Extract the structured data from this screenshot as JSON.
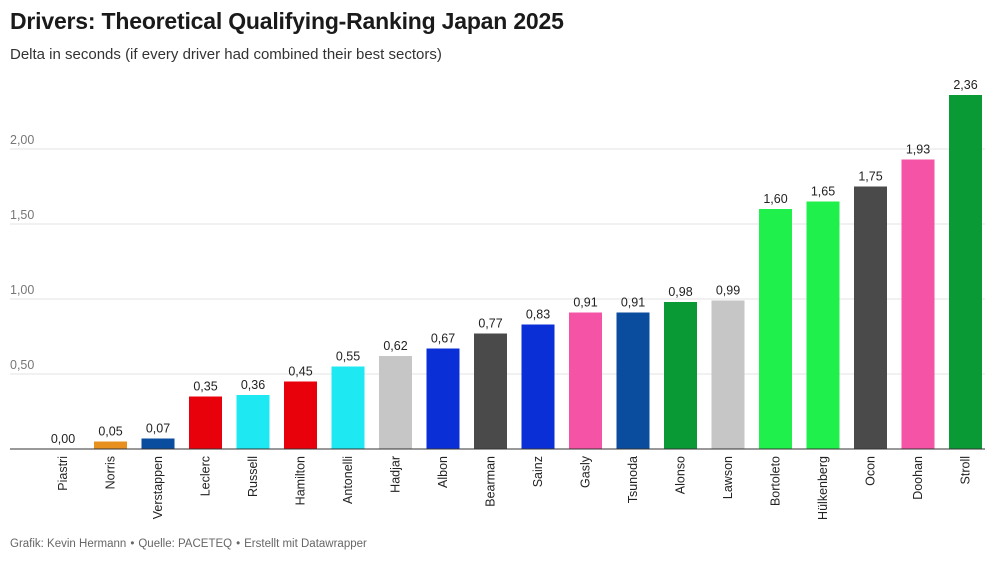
{
  "title": "Drivers: Theoretical Qualifying-Ranking Japan 2025",
  "subtitle": "Delta in seconds (if every driver had combined their best sectors)",
  "footer": {
    "grafik": "Grafik: Kevin Hermann",
    "quelle": "Quelle: PACETEQ",
    "erstellt": "Erstellt mit Datawrapper",
    "separator": "•"
  },
  "chart_data": {
    "type": "bar",
    "title": "Drivers: Theoretical Qualifying-Ranking Japan 2025",
    "subtitle": "Delta in seconds (if every driver had combined their best sectors)",
    "xlabel": "",
    "ylabel": "",
    "ylim": [
      0,
      2.4
    ],
    "yticks": [
      0.5,
      1.0,
      1.5,
      2.0
    ],
    "ytick_labels": [
      "0,50",
      "1,00",
      "1,50",
      "2,00"
    ],
    "grid": true,
    "categories": [
      "Piastri",
      "Norris",
      "Verstappen",
      "Leclerc",
      "Russell",
      "Hamilton",
      "Antonelli",
      "Hadjar",
      "Albon",
      "Bearman",
      "Sainz",
      "Gasly",
      "Tsunoda",
      "Alonso",
      "Lawson",
      "Bortoleto",
      "Hülkenberg",
      "Ocon",
      "Doohan",
      "Stroll"
    ],
    "values": [
      0.0,
      0.05,
      0.07,
      0.35,
      0.36,
      0.45,
      0.55,
      0.62,
      0.67,
      0.77,
      0.83,
      0.91,
      0.91,
      0.98,
      0.99,
      1.6,
      1.65,
      1.75,
      1.93,
      2.36
    ],
    "value_labels": [
      "0,00",
      "0,05",
      "0,07",
      "0,35",
      "0,36",
      "0,45",
      "0,55",
      "0,62",
      "0,67",
      "0,77",
      "0,83",
      "0,91",
      "0,91",
      "0,98",
      "0,99",
      "1,60",
      "1,65",
      "1,75",
      "1,93",
      "2,36"
    ],
    "colors": [
      "#f58020",
      "#e8901e",
      "#0a4d9e",
      "#e8000b",
      "#1ee8f2",
      "#e8000b",
      "#1ee8f2",
      "#c6c6c6",
      "#0a2fd6",
      "#4a4a4a",
      "#0a2fd6",
      "#f553a6",
      "#0a4d9e",
      "#0a9a35",
      "#c6c6c6",
      "#20f04b",
      "#20f04b",
      "#4a4a4a",
      "#f553a6",
      "#0a9a35"
    ]
  }
}
